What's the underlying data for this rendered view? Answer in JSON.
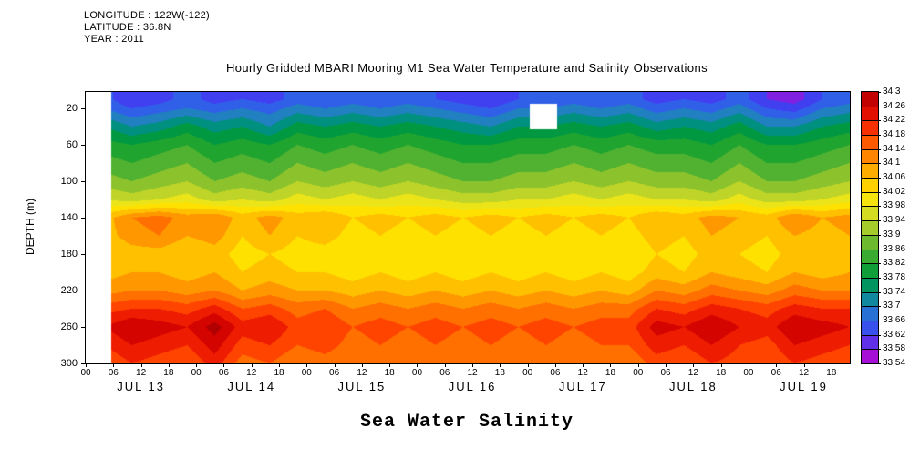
{
  "header": {
    "longitude": "LONGITUDE : 122W(-122)",
    "latitude": "LATITUDE : 36.8N",
    "year": "YEAR : 2011"
  },
  "title": "Hourly Gridded MBARI Mooring M1 Sea Water Temperature and Salinity Observations",
  "footer_label": "Sea Water Salinity",
  "chart_data": {
    "type": "heatmap",
    "title": "Hourly Gridded MBARI Mooring M1 Sea Water Temperature and Salinity Observations",
    "xlabel": "",
    "ylabel": "DEPTH (m)",
    "colorbar_title": "Sea Water Salinity",
    "x_range_hours": [
      0,
      166
    ],
    "depth_range": [
      2,
      300
    ],
    "contour_interval": 0.04,
    "x_ticks": {
      "hours": [
        0,
        6,
        12,
        18,
        24,
        30,
        36,
        42,
        48,
        54,
        60,
        66,
        72,
        78,
        84,
        90,
        96,
        102,
        108,
        114,
        120,
        126,
        132,
        138,
        144,
        150,
        156,
        162
      ],
      "labels": [
        "00",
        "06",
        "12",
        "18",
        "00",
        "06",
        "12",
        "18",
        "00",
        "06",
        "12",
        "18",
        "00",
        "06",
        "12",
        "18",
        "00",
        "06",
        "12",
        "18",
        "00",
        "06",
        "12",
        "18",
        "00",
        "06",
        "12",
        "18"
      ]
    },
    "day_labels": [
      {
        "label": "JUL 13",
        "hour": 12
      },
      {
        "label": "JUL 14",
        "hour": 36
      },
      {
        "label": "JUL 15",
        "hour": 60
      },
      {
        "label": "JUL 16",
        "hour": 84
      },
      {
        "label": "JUL 17",
        "hour": 108
      },
      {
        "label": "JUL 18",
        "hour": 132
      },
      {
        "label": "JUL 19",
        "hour": 156
      }
    ],
    "depth_ticks": [
      20,
      60,
      100,
      140,
      180,
      220,
      260,
      300
    ],
    "colorbar_tick_labels": [
      "34.3",
      "34.26",
      "34.22",
      "34.18",
      "34.14",
      "34.1",
      "34.06",
      "34.02",
      "33.98",
      "33.94",
      "33.9",
      "33.86",
      "33.82",
      "33.78",
      "33.74",
      "33.7",
      "33.66",
      "33.62",
      "33.58",
      "33.54"
    ],
    "colormap": {
      "values": [
        33.54,
        33.58,
        33.62,
        33.66,
        33.7,
        33.74,
        33.78,
        33.82,
        33.86,
        33.9,
        33.94,
        33.98,
        34.02,
        34.06,
        34.1,
        34.14,
        34.18,
        34.22,
        34.26,
        34.3
      ],
      "colors": [
        "#cc00cc",
        "#8020e0",
        "#4040f0",
        "#3060e8",
        "#2080c0",
        "#009080",
        "#009840",
        "#20a430",
        "#50b230",
        "#8cc32d",
        "#bed428",
        "#ebe419",
        "#ffe100",
        "#ffc000",
        "#ff9800",
        "#ff7000",
        "#ff4400",
        "#ee1c00",
        "#d40400",
        "#b00000"
      ]
    },
    "missing_regions": [
      {
        "hour_min": 0,
        "hour_max": 5.5,
        "depth_min": 0,
        "depth_max": 300
      },
      {
        "hour_min": 96.5,
        "hour_max": 102.5,
        "depth_min": 15,
        "depth_max": 43
      }
    ],
    "grid": {
      "hours": [
        4,
        10,
        16,
        22,
        28,
        34,
        40,
        46,
        52,
        58,
        64,
        70,
        76,
        82,
        88,
        94,
        100,
        106,
        112,
        118,
        124,
        130,
        136,
        142,
        148,
        154,
        160,
        166
      ],
      "depths": [
        10,
        20,
        40,
        60,
        80,
        100,
        120,
        140,
        160,
        180,
        200,
        220,
        240,
        260,
        280,
        300
      ],
      "values": [
        [
          33.66,
          33.6,
          33.62,
          33.66,
          33.62,
          33.64,
          33.62,
          33.66,
          33.64,
          33.66,
          33.64,
          33.66,
          33.64,
          33.62,
          33.6,
          33.64,
          33.64,
          33.66,
          33.64,
          33.66,
          33.62,
          33.64,
          33.62,
          33.66,
          33.6,
          33.58,
          33.64,
          33.66
        ],
        [
          33.68,
          33.64,
          33.66,
          33.68,
          33.66,
          33.68,
          33.66,
          33.7,
          33.68,
          33.7,
          33.68,
          33.7,
          33.68,
          33.66,
          33.64,
          33.68,
          33.68,
          33.7,
          33.68,
          33.7,
          33.66,
          33.68,
          33.66,
          33.7,
          33.64,
          33.62,
          33.68,
          33.7
        ],
        [
          33.76,
          33.72,
          33.74,
          33.78,
          33.74,
          33.76,
          33.72,
          33.78,
          33.76,
          33.78,
          33.76,
          33.78,
          33.76,
          33.74,
          33.72,
          33.76,
          33.76,
          33.78,
          33.76,
          33.78,
          33.74,
          33.76,
          33.74,
          33.78,
          33.72,
          33.72,
          33.76,
          33.78
        ],
        [
          33.82,
          33.8,
          33.82,
          33.84,
          33.8,
          33.82,
          33.8,
          33.84,
          33.82,
          33.84,
          33.82,
          33.84,
          33.82,
          33.8,
          33.8,
          33.82,
          33.82,
          33.84,
          33.82,
          33.84,
          33.82,
          33.82,
          33.8,
          33.84,
          33.8,
          33.8,
          33.82,
          33.84
        ],
        [
          33.86,
          33.84,
          33.86,
          33.88,
          33.84,
          33.86,
          33.84,
          33.88,
          33.86,
          33.88,
          33.86,
          33.88,
          33.86,
          33.84,
          33.84,
          33.86,
          33.86,
          33.88,
          33.86,
          33.88,
          33.86,
          33.86,
          33.84,
          33.88,
          33.84,
          33.84,
          33.86,
          33.88
        ],
        [
          33.9,
          33.88,
          33.9,
          33.92,
          33.88,
          33.9,
          33.88,
          33.92,
          33.9,
          33.92,
          33.9,
          33.92,
          33.9,
          33.88,
          33.88,
          33.9,
          33.9,
          33.92,
          33.9,
          33.92,
          33.9,
          33.9,
          33.88,
          33.92,
          33.88,
          33.88,
          33.9,
          33.92
        ],
        [
          33.96,
          33.94,
          33.96,
          33.98,
          33.94,
          33.96,
          33.94,
          33.98,
          33.96,
          33.98,
          33.96,
          33.98,
          33.96,
          33.94,
          33.94,
          33.96,
          33.96,
          33.98,
          33.96,
          33.98,
          33.96,
          33.96,
          33.94,
          33.98,
          33.94,
          33.94,
          33.96,
          33.98
        ],
        [
          34.06,
          34.12,
          34.14,
          34.1,
          34.12,
          34.06,
          34.1,
          34.06,
          34.08,
          34.04,
          34.06,
          34.04,
          34.06,
          34.04,
          34.06,
          34.04,
          34.06,
          34.04,
          34.06,
          34.04,
          34.08,
          34.06,
          34.1,
          34.08,
          34.06,
          34.12,
          34.08,
          34.1
        ],
        [
          34.06,
          34.1,
          34.12,
          34.08,
          34.1,
          34.04,
          34.08,
          34.04,
          34.06,
          34.02,
          34.04,
          34.02,
          34.04,
          34.02,
          34.04,
          34.02,
          34.04,
          34.02,
          34.04,
          34.02,
          34.06,
          34.04,
          34.08,
          34.06,
          34.04,
          34.08,
          34.06,
          34.08
        ],
        [
          34.04,
          34.06,
          34.06,
          34.04,
          34.06,
          34.02,
          34.04,
          34.02,
          34.02,
          34.0,
          34.02,
          34.0,
          34.02,
          34.0,
          34.02,
          34.0,
          34.02,
          34.0,
          34.02,
          34.0,
          34.04,
          34.02,
          34.06,
          34.04,
          34.02,
          34.06,
          34.04,
          34.06
        ],
        [
          34.06,
          34.08,
          34.08,
          34.06,
          34.08,
          34.04,
          34.06,
          34.04,
          34.04,
          34.02,
          34.04,
          34.02,
          34.04,
          34.02,
          34.04,
          34.02,
          34.04,
          34.02,
          34.04,
          34.02,
          34.06,
          34.04,
          34.08,
          34.06,
          34.04,
          34.08,
          34.06,
          34.08
        ],
        [
          34.1,
          34.12,
          34.12,
          34.1,
          34.12,
          34.08,
          34.1,
          34.08,
          34.08,
          34.06,
          34.08,
          34.06,
          34.08,
          34.06,
          34.08,
          34.06,
          34.08,
          34.06,
          34.08,
          34.06,
          34.12,
          34.1,
          34.14,
          34.12,
          34.1,
          34.14,
          34.12,
          34.12
        ],
        [
          34.18,
          34.2,
          34.2,
          34.18,
          34.22,
          34.16,
          34.18,
          34.14,
          34.16,
          34.12,
          34.14,
          34.12,
          34.14,
          34.12,
          34.14,
          34.12,
          34.14,
          34.12,
          34.14,
          34.14,
          34.2,
          34.18,
          34.22,
          34.2,
          34.18,
          34.22,
          34.2,
          34.2
        ],
        [
          34.24,
          34.28,
          34.26,
          34.24,
          34.3,
          34.22,
          34.24,
          34.18,
          34.2,
          34.16,
          34.18,
          34.16,
          34.18,
          34.16,
          34.18,
          34.16,
          34.18,
          34.16,
          34.18,
          34.18,
          34.26,
          34.24,
          34.28,
          34.24,
          34.22,
          34.28,
          34.26,
          34.24
        ],
        [
          34.2,
          34.24,
          34.22,
          34.2,
          34.26,
          34.18,
          34.2,
          34.16,
          34.18,
          34.14,
          34.16,
          34.14,
          34.16,
          34.14,
          34.16,
          34.14,
          34.16,
          34.14,
          34.16,
          34.16,
          34.22,
          34.2,
          34.24,
          34.2,
          34.18,
          34.24,
          34.22,
          34.2
        ],
        [
          34.16,
          34.2,
          34.18,
          34.16,
          34.22,
          34.14,
          34.16,
          34.12,
          34.14,
          34.12,
          34.14,
          34.12,
          34.14,
          34.12,
          34.14,
          34.12,
          34.14,
          34.12,
          34.14,
          34.12,
          34.18,
          34.16,
          34.2,
          34.18,
          34.16,
          34.2,
          34.18,
          34.16
        ]
      ]
    }
  }
}
